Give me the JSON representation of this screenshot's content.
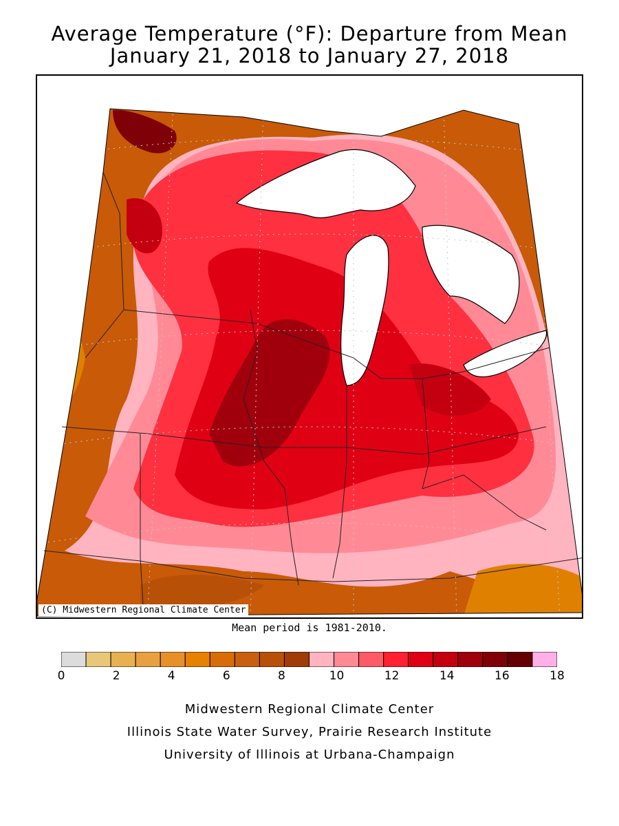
{
  "title_line1": "Average Temperature (°F): Departure from Mean",
  "title_line2": "January 21, 2018 to January 27, 2018",
  "map_credit": "(C) Midwestern Regional Climate Center",
  "mean_period": "Mean period is 1981-2010.",
  "legend": {
    "colors": [
      "#dcdcdc",
      "#e8c878",
      "#e8b050",
      "#e8a040",
      "#e89028",
      "#e88000",
      "#d86c08",
      "#c86010",
      "#b85008",
      "#a03c08",
      "#ffb4c0",
      "#ff8a96",
      "#ff5a66",
      "#ff2030",
      "#e00014",
      "#c40010",
      "#a0000c",
      "#800008",
      "#640000",
      "#ffb0e8"
    ],
    "ticks": [
      "0",
      "2",
      "4",
      "6",
      "8",
      "10",
      "12",
      "14",
      "16",
      "18"
    ]
  },
  "footer_line1": "Midwestern Regional Climate Center",
  "footer_line2": "Illinois State Water Survey, Prairie Research Institute",
  "footer_line3": "University of Illinois at Urbana-Champaign"
}
